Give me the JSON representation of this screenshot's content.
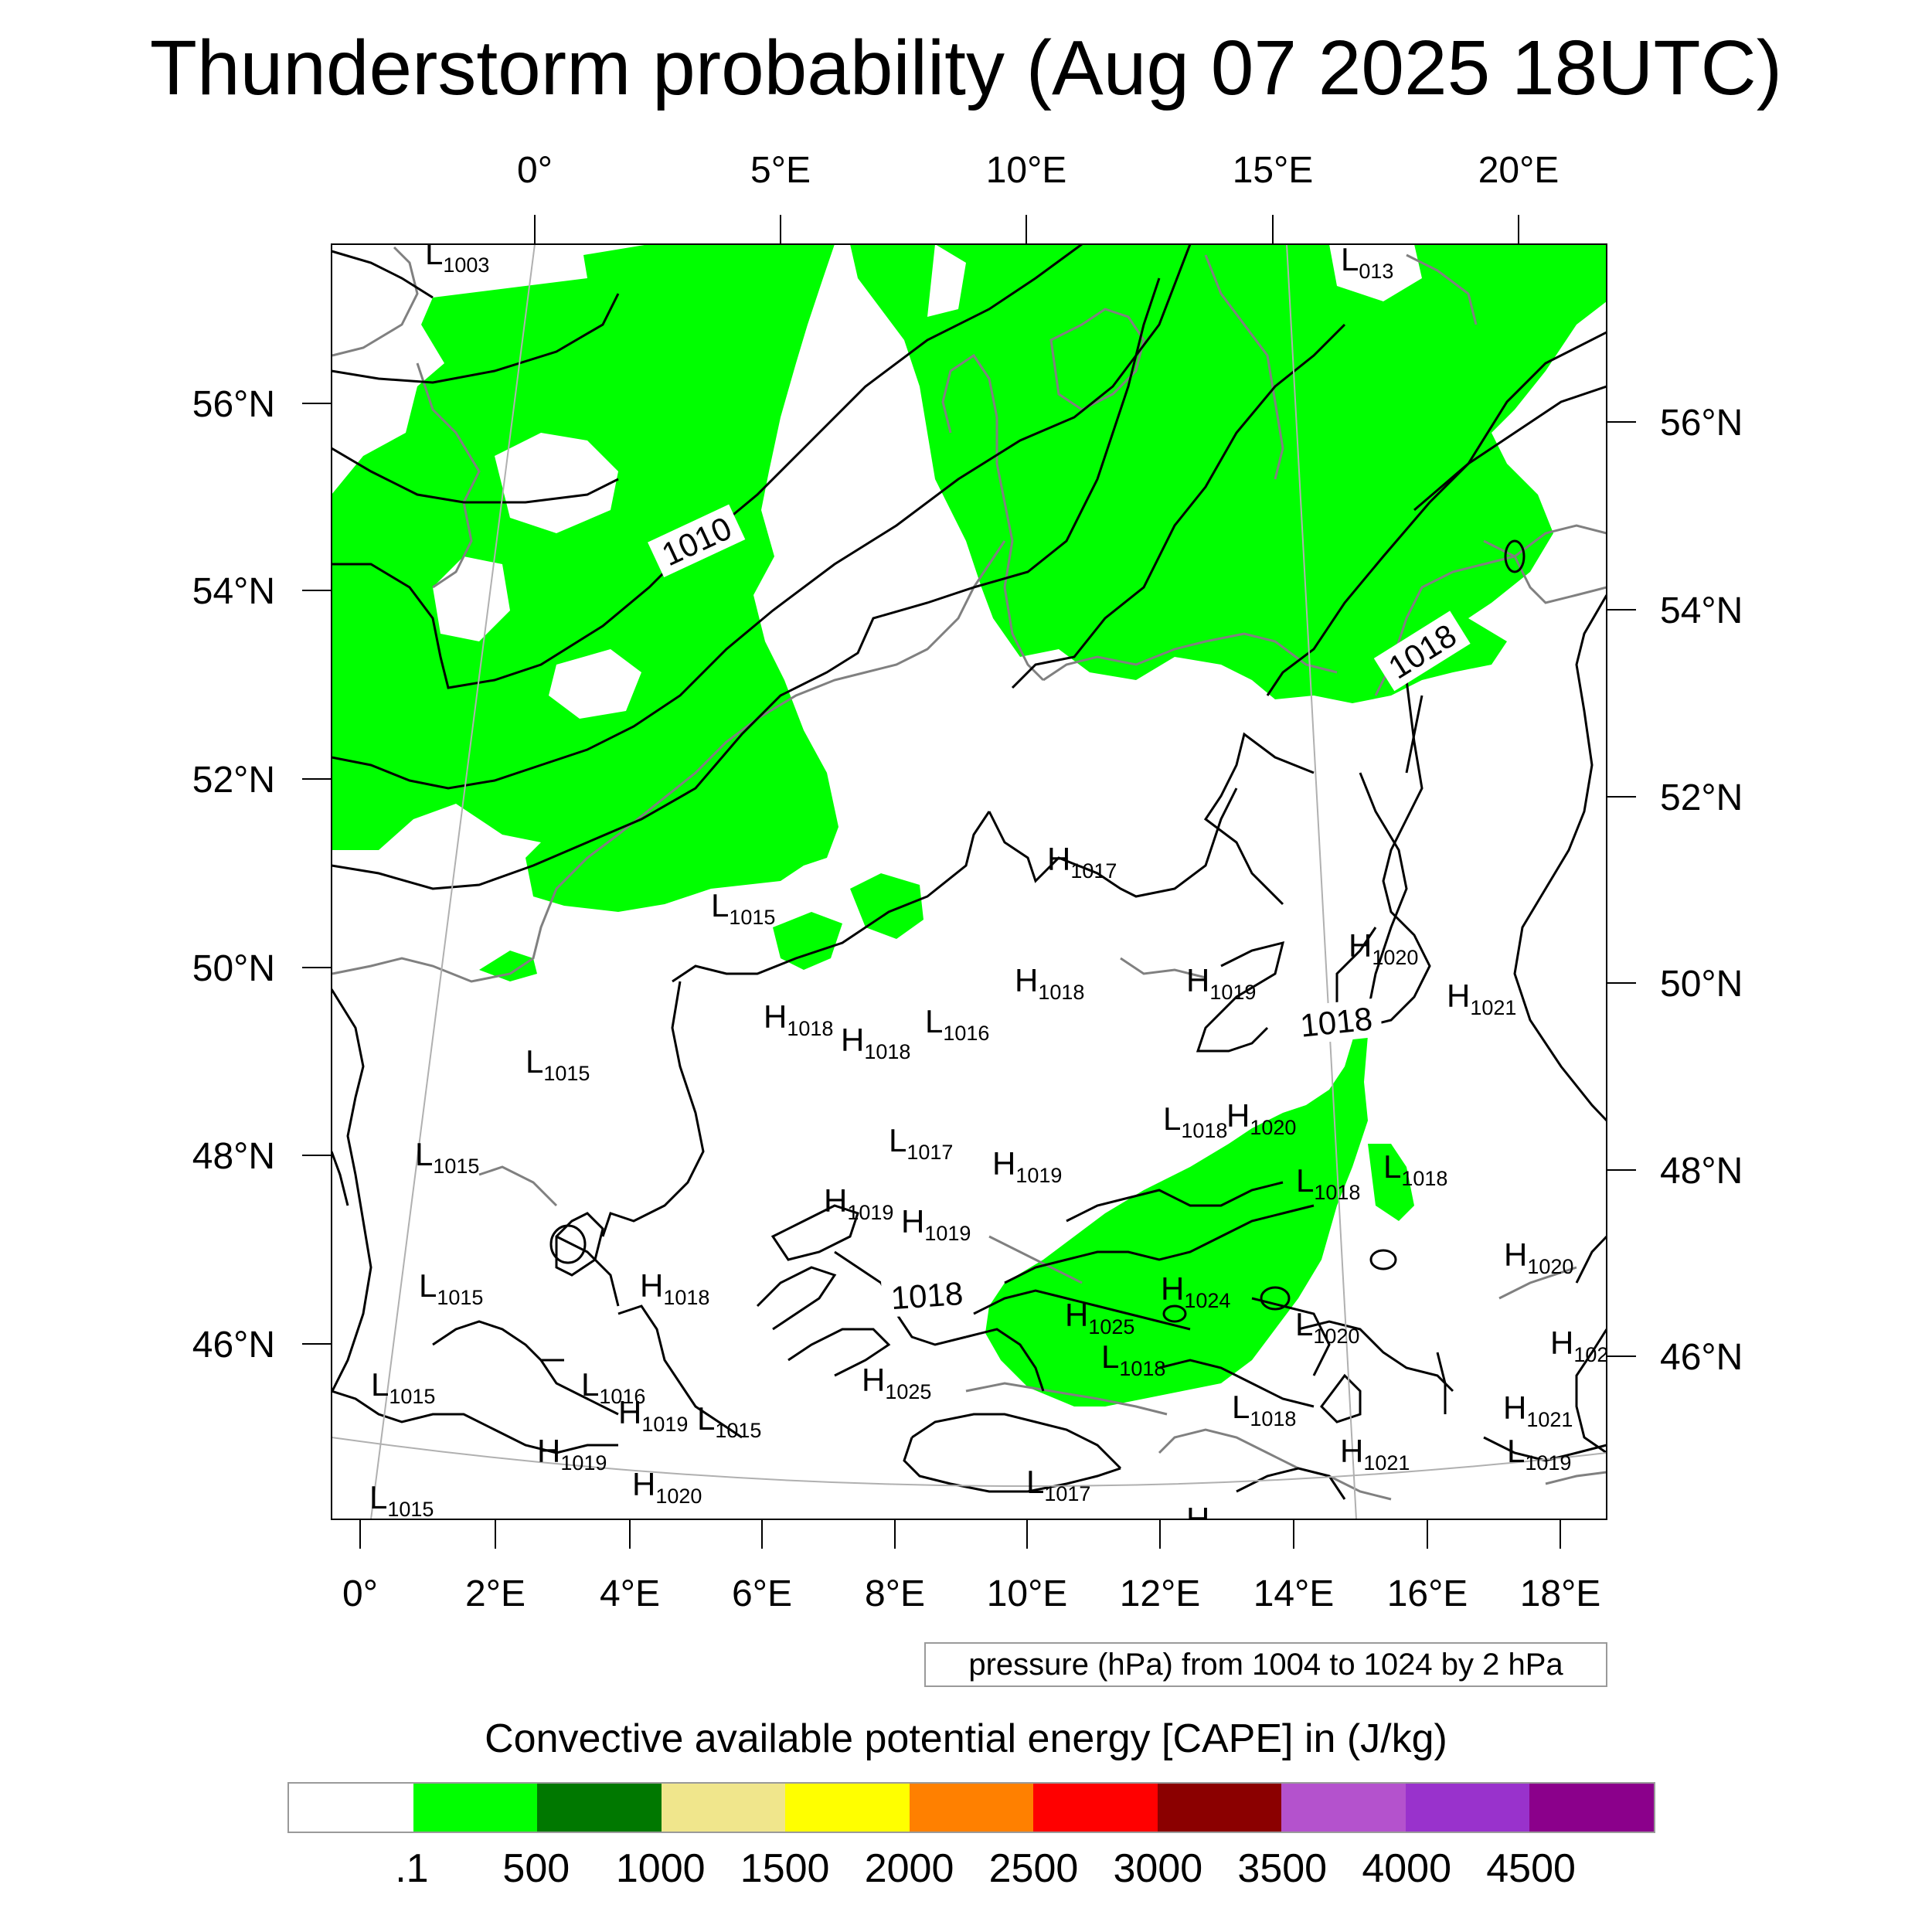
{
  "title": "Thunderstorm probability (Aug 07 2025 18UTC)",
  "map": {
    "top_lon_labels": [
      "0°",
      "5°E",
      "10°E",
      "15°E",
      "20°E"
    ],
    "bottom_lon_labels": [
      "0°",
      "2°E",
      "4°E",
      "6°E",
      "8°E",
      "10°E",
      "12°E",
      "14°E",
      "16°E",
      "18°E"
    ],
    "left_lat_labels": [
      "56°N",
      "54°N",
      "52°N",
      "50°N",
      "48°N",
      "46°N"
    ],
    "right_lat_labels": [
      "56°N",
      "54°N",
      "52°N",
      "50°N",
      "48°N",
      "46°N"
    ],
    "isobar_labels": [
      "1010",
      "1018",
      "1018",
      "1018"
    ],
    "pressure_systems": [
      {
        "l": "L",
        "v": "1003"
      },
      {
        "l": "L",
        "v": "013"
      },
      {
        "l": "H",
        "v": "1017"
      },
      {
        "l": "L",
        "v": "1015"
      },
      {
        "l": "H",
        "v": "1020"
      },
      {
        "l": "H",
        "v": "1018"
      },
      {
        "l": "H",
        "v": "1019"
      },
      {
        "l": "H",
        "v": "1021"
      },
      {
        "l": "H",
        "v": "1018"
      },
      {
        "l": "H",
        "v": "1018"
      },
      {
        "l": "L",
        "v": "1016"
      },
      {
        "l": "L",
        "v": "1015"
      },
      {
        "l": "L",
        "v": "1018"
      },
      {
        "l": "H",
        "v": "1020"
      },
      {
        "l": "L",
        "v": "1015"
      },
      {
        "l": "L",
        "v": "1017"
      },
      {
        "l": "H",
        "v": "1019"
      },
      {
        "l": "L",
        "v": "1018"
      },
      {
        "l": "L",
        "v": "1018"
      },
      {
        "l": "H",
        "v": "1019"
      },
      {
        "l": "H",
        "v": "1019"
      },
      {
        "l": "H",
        "v": "1020"
      },
      {
        "l": "L",
        "v": "1015"
      },
      {
        "l": "H",
        "v": "1018"
      },
      {
        "l": "H",
        "v": "1024"
      },
      {
        "l": "H",
        "v": "1025"
      },
      {
        "l": "L",
        "v": "1020"
      },
      {
        "l": "H",
        "v": "102"
      },
      {
        "l": "L",
        "v": "1015"
      },
      {
        "l": "L",
        "v": "1016"
      },
      {
        "l": "H",
        "v": "1019"
      },
      {
        "l": "L",
        "v": "1015"
      },
      {
        "l": "H",
        "v": "1025"
      },
      {
        "l": "L",
        "v": "1018"
      },
      {
        "l": "L",
        "v": "1018"
      },
      {
        "l": "H",
        "v": "1021"
      },
      {
        "l": "H",
        "v": "1019"
      },
      {
        "l": "H",
        "v": "1020"
      },
      {
        "l": "L",
        "v": "1017"
      },
      {
        "l": "H",
        "v": "1021"
      },
      {
        "l": "L",
        "v": "1019"
      },
      {
        "l": "L",
        "v": "1015"
      },
      {
        "l": "H",
        "v": ""
      }
    ]
  },
  "pressure_note": "pressure (hPa) from 1004 to 1024 by 2 hPa",
  "cape_title": "Convective available potential energy [CAPE] in (J/kg)",
  "colorbar": {
    "colors": [
      "#ffffff",
      "#00ff00",
      "#007800",
      "#f0e68c",
      "#ffff00",
      "#ff8000",
      "#ff0000",
      "#8b0000",
      "#b452cd",
      "#9932cc",
      "#8b008b"
    ],
    "labels": [
      ".1",
      "500",
      "1000",
      "1500",
      "2000",
      "2500",
      "3000",
      "3500",
      "4000",
      "4500"
    ]
  },
  "colors": {
    "cape_green": "#00ff00",
    "coastline": "#808080",
    "isobar": "#000000"
  }
}
